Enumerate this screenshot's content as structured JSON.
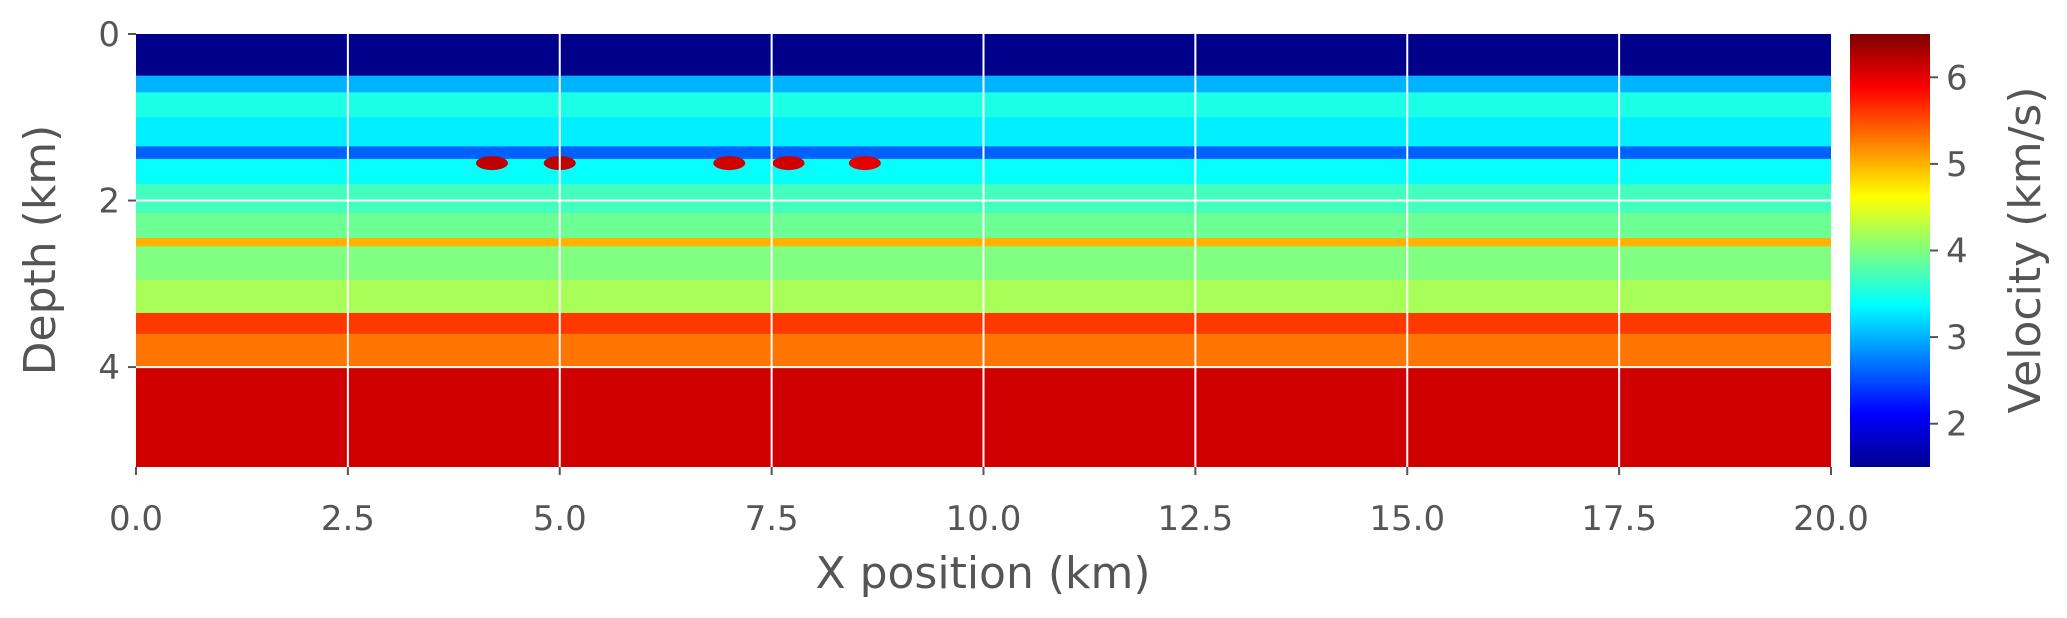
{
  "chart_data": {
    "type": "heatmap",
    "title": "",
    "xlabel": "X position (km)",
    "ylabel": "Depth (km)",
    "colorbar_label": "Velocity (km/s)",
    "colormap": "jet",
    "xlim": [
      0,
      20
    ],
    "ylim": [
      5.2,
      0
    ],
    "clim": [
      1.5,
      6.5
    ],
    "x_ticks": [
      0,
      2.5,
      5,
      7.5,
      10,
      12.5,
      15,
      17.5,
      20
    ],
    "x_tick_labels": [
      "0.0",
      "2.5",
      "5.0",
      "7.5",
      "10.0",
      "12.5",
      "15.0",
      "17.5",
      "20.0"
    ],
    "y_ticks": [
      0,
      2,
      4
    ],
    "y_tick_labels": [
      "0",
      "2",
      "4"
    ],
    "colorbar_ticks": [
      2,
      3,
      4,
      5,
      6
    ],
    "colorbar_tick_labels": [
      "2",
      "3",
      "4",
      "5",
      "6"
    ],
    "grid": true,
    "grid_color": "#ffffff",
    "layers": [
      {
        "top": 0.0,
        "bottom": 0.5,
        "velocity": 1.55
      },
      {
        "top": 0.5,
        "bottom": 0.7,
        "velocity": 3.0
      },
      {
        "top": 0.7,
        "bottom": 1.0,
        "velocity": 3.5
      },
      {
        "top": 1.0,
        "bottom": 1.35,
        "velocity": 3.3
      },
      {
        "top": 1.35,
        "bottom": 1.5,
        "velocity": 2.6
      },
      {
        "top": 1.5,
        "bottom": 1.8,
        "velocity": 3.4
      },
      {
        "top": 1.8,
        "bottom": 2.15,
        "velocity": 3.7
      },
      {
        "top": 2.15,
        "bottom": 2.45,
        "velocity": 3.9
      },
      {
        "top": 2.45,
        "bottom": 2.55,
        "velocity": 5.0
      },
      {
        "top": 2.55,
        "bottom": 2.95,
        "velocity": 4.0
      },
      {
        "top": 2.95,
        "bottom": 3.35,
        "velocity": 4.2
      },
      {
        "top": 3.35,
        "bottom": 3.6,
        "velocity": 5.6
      },
      {
        "top": 3.6,
        "bottom": 4.0,
        "velocity": 5.3
      },
      {
        "top": 4.0,
        "bottom": 5.2,
        "velocity": 6.1
      }
    ],
    "bright_lenses": [
      {
        "x": 4.2,
        "depth": 1.55,
        "velocity": 6.2
      },
      {
        "x": 5.0,
        "depth": 1.55,
        "velocity": 6.2
      },
      {
        "x": 7.0,
        "depth": 1.55,
        "velocity": 6.1
      },
      {
        "x": 7.7,
        "depth": 1.55,
        "velocity": 6.1
      },
      {
        "x": 8.6,
        "depth": 1.55,
        "velocity": 6.0
      }
    ]
  }
}
